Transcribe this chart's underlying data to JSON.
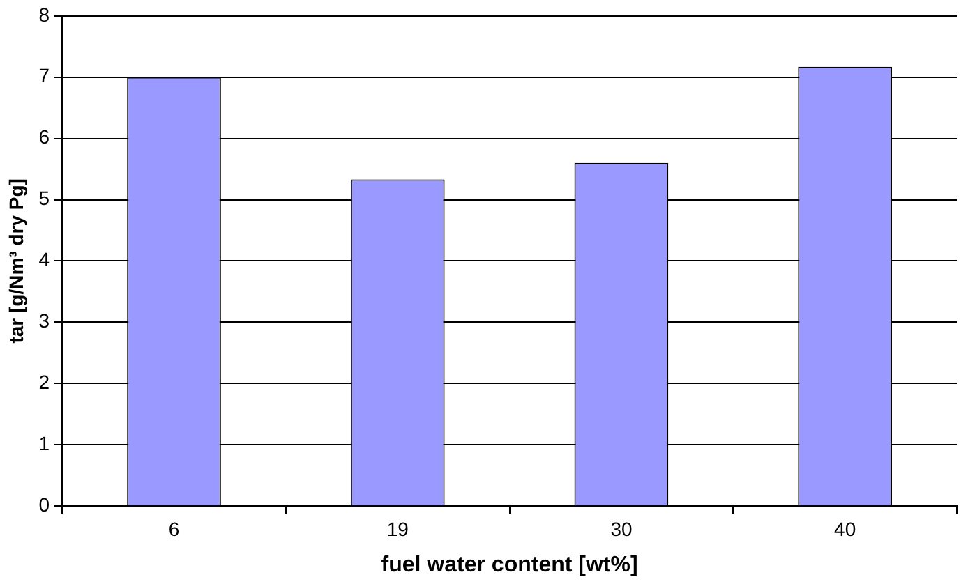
{
  "chart_data": {
    "type": "bar",
    "xlabel": "fuel water content [wt%]",
    "ylabel": "tar [g/Nm³ dry Pg]",
    "categories": [
      "6",
      "19",
      "30",
      "40"
    ],
    "values": [
      7.0,
      5.33,
      5.6,
      7.17
    ],
    "color": "#9999ff",
    "ylim": [
      0,
      8
    ],
    "yticks": [
      0,
      1,
      2,
      3,
      4,
      5,
      6,
      7,
      8
    ],
    "grid": "y",
    "legend": false
  }
}
